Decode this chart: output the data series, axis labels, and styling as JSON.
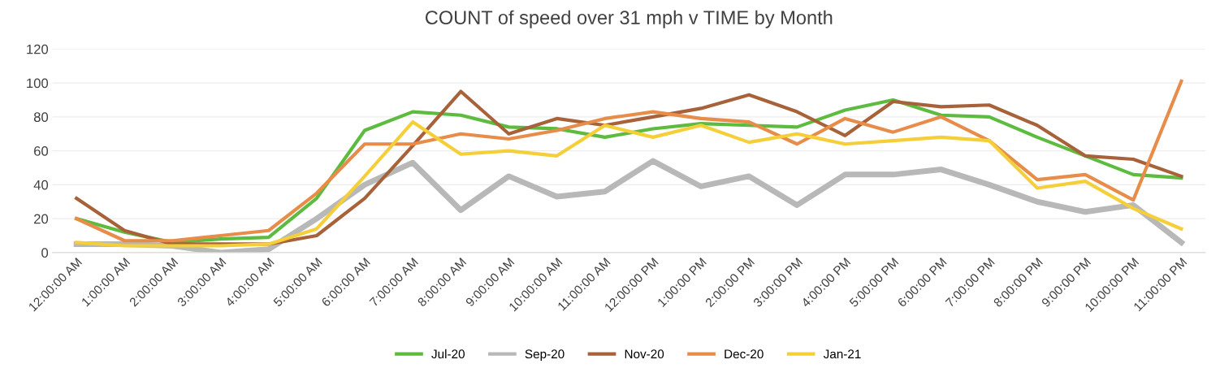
{
  "chart_data": {
    "type": "line",
    "title": "COUNT of speed over 31 mph v TIME by Month",
    "categories": [
      "12:00:00 AM",
      "1:00:00 AM",
      "2:00:00 AM",
      "3:00:00 AM",
      "4:00:00 AM",
      "5:00:00 AM",
      "6:00:00 AM",
      "7:00:00 AM",
      "8:00:00 AM",
      "9:00:00 AM",
      "10:00:00 AM",
      "11:00:00 AM",
      "12:00:00 PM",
      "1:00:00 PM",
      "2:00:00 PM",
      "3:00:00 PM",
      "4:00:00 PM",
      "5:00:00 PM",
      "6:00:00 PM",
      "7:00:00 PM",
      "8:00:00 PM",
      "9:00:00 PM",
      "10:00:00 PM",
      "11:00:00 PM"
    ],
    "series": [
      {
        "name": "Jul-20",
        "color": "#5dbb3f",
        "values": [
          20,
          12,
          6,
          8,
          9,
          32,
          72,
          83,
          81,
          74,
          73,
          68,
          73,
          76,
          75,
          74,
          84,
          90,
          81,
          80,
          68,
          57,
          46,
          44
        ]
      },
      {
        "name": "Sep-20",
        "color": "#b8b8b8",
        "values": [
          5,
          5,
          4,
          0,
          2,
          20,
          40,
          53,
          25,
          45,
          33,
          36,
          54,
          39,
          45,
          28,
          46,
          46,
          49,
          40,
          30,
          24,
          28,
          6
        ]
      },
      {
        "name": "Nov-20",
        "color": "#a8623a",
        "values": [
          32,
          13,
          5,
          5,
          5,
          10,
          32,
          63,
          95,
          70,
          79,
          75,
          80,
          85,
          93,
          83,
          69,
          89,
          86,
          87,
          75,
          57,
          55,
          45
        ]
      },
      {
        "name": "Dec-20",
        "color": "#e88c4a",
        "values": [
          20,
          7,
          7,
          10,
          13,
          35,
          64,
          64,
          70,
          67,
          72,
          79,
          83,
          79,
          77,
          64,
          79,
          71,
          80,
          66,
          43,
          46,
          31,
          101
        ]
      },
      {
        "name": "Jan-21",
        "color": "#f5cf3a",
        "values": [
          6,
          4,
          4,
          4,
          5,
          14,
          45,
          77,
          58,
          60,
          57,
          75,
          68,
          75,
          65,
          70,
          64,
          66,
          68,
          66,
          38,
          42,
          26,
          14
        ]
      }
    ],
    "ylim": [
      0,
      120
    ],
    "yticks": [
      0,
      20,
      40,
      60,
      80,
      100,
      120
    ],
    "grid": "y",
    "legend": "bottom",
    "marker": "none",
    "line_style": "solid"
  }
}
